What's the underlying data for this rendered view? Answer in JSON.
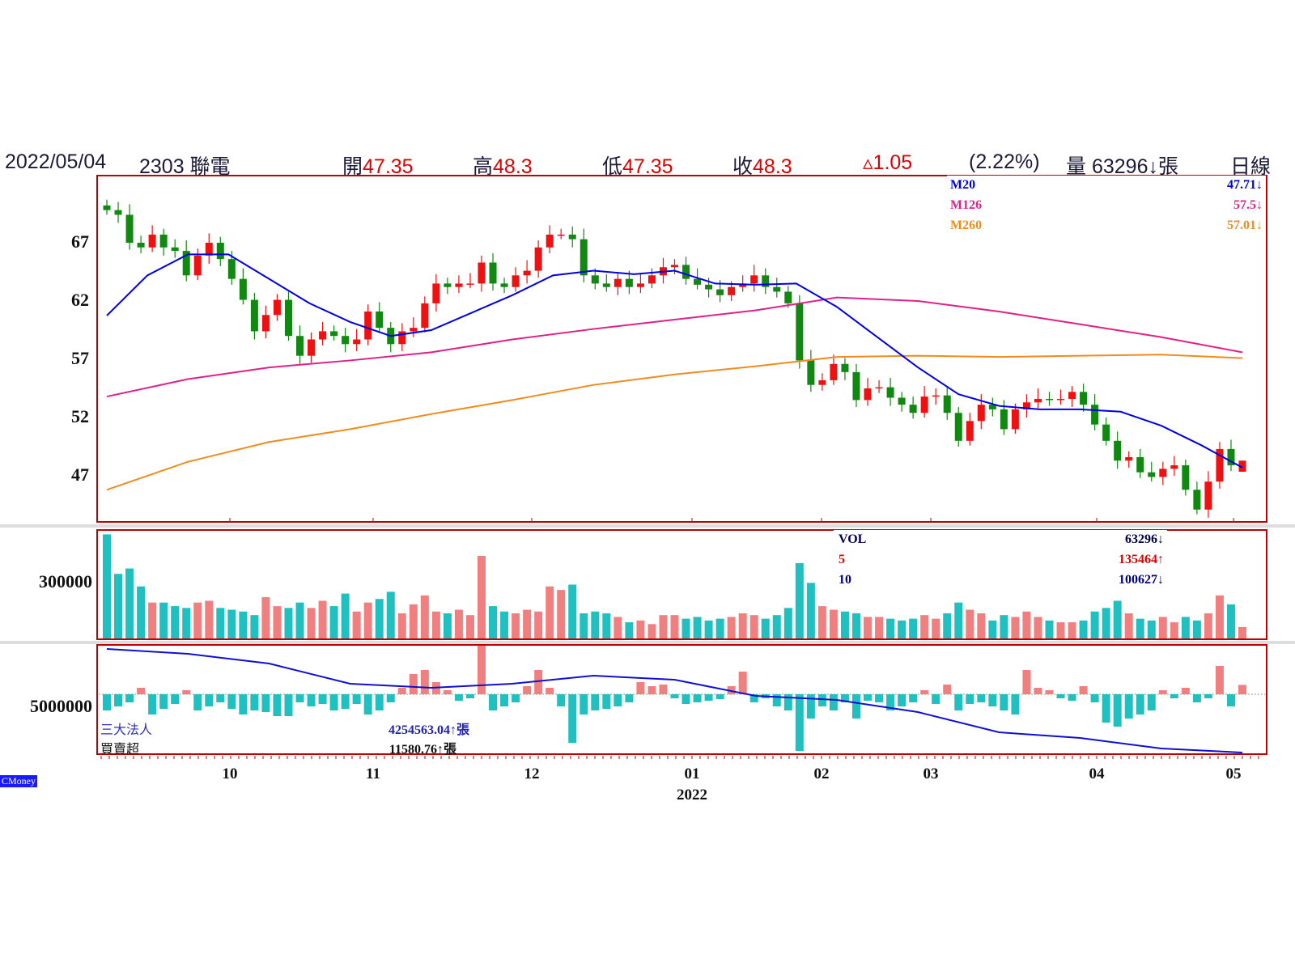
{
  "header": {
    "date": "2022/05/04",
    "stock": "2303 聯電",
    "open_label": "開",
    "open": "47.35",
    "high_label": "高",
    "high": "48.3",
    "low_label": "低",
    "low": "47.35",
    "close_label": "收",
    "close": "48.3",
    "change": "▵1.05",
    "change_pct": "(2.22%)",
    "volume_label": "量",
    "volume": "63296↓張",
    "period": "日線"
  },
  "ma_legend": [
    {
      "name": "M20",
      "value": "47.71↓",
      "color": "#0000e0"
    },
    {
      "name": "M126",
      "value": "57.5↓",
      "color": "#e0208a"
    },
    {
      "name": "M260",
      "value": "57.01↓",
      "color": "#f08c1e"
    }
  ],
  "vol_legend": [
    {
      "name": "VOL",
      "value": "63296↓",
      "color": "#000050"
    },
    {
      "name": "5",
      "value": "135464↑",
      "color": "#e00000"
    },
    {
      "name": "10",
      "value": "100627↓",
      "color": "#000080"
    }
  ],
  "inst_legend": {
    "name": "三大法人",
    "value": "4254563.04↑張",
    "name2": "買賣超",
    "value2": "11580.76↑張"
  },
  "brand": "CMoney",
  "colors": {
    "up": "#ee1111",
    "down": "#118811",
    "vol_up": "#f08080",
    "vol_down": "#20c0c0",
    "frame": "#c00000"
  },
  "chart_data": {
    "type": "candlestick",
    "price_ticks": [
      "67",
      "62",
      "57",
      "52",
      "47"
    ],
    "price_tick_values": [
      67,
      62,
      57,
      52,
      47
    ],
    "volume_tick": "300000",
    "volume_tick_value": 300000,
    "inst_tick": "5000000",
    "inst_tick_value": 5000000,
    "x_ticks": [
      "10",
      "11",
      "12",
      "01",
      "02",
      "03",
      "04",
      "05"
    ],
    "year_label": "2022",
    "close": [
      69.8,
      69.4,
      67,
      66.6,
      67.7,
      66.6,
      66.3,
      64.2,
      65.9,
      67,
      65.6,
      63.9,
      62.1,
      59.4,
      60.8,
      62.1,
      59,
      57.3,
      58.7,
      59.4,
      59,
      58.3,
      58.7,
      61.1,
      59.7,
      58.3,
      59.4,
      59.7,
      61.8,
      63.5,
      63.2,
      63.5,
      63.5,
      65.3,
      63.5,
      63.2,
      64.2,
      64.6,
      66.6,
      67.7,
      67.7,
      67.3,
      64.2,
      63.5,
      63.2,
      63.9,
      63.2,
      63.5,
      64.2,
      64.9,
      65.1,
      63.9,
      63.4,
      63.0,
      62.5,
      63.2,
      63.5,
      64.2,
      63.2,
      62.8,
      61.8,
      56.9,
      54.8,
      55.2,
      56.6,
      55.9,
      53.5,
      54.5,
      54.6,
      53.7,
      53.1,
      52.4,
      53.8,
      53.9,
      52.4,
      50,
      51.7,
      53.1,
      52.7,
      51,
      52.7,
      53.3,
      53.6,
      53.5,
      53.6,
      54.2,
      53.1,
      51.4,
      50,
      48.3,
      48.6,
      47.3,
      46.9,
      47.6,
      47.9,
      45.8,
      44.1,
      46.5,
      49.3,
      47.9,
      48.3
    ],
    "last_ohlc": {
      "open": 47.35,
      "high": 48.3,
      "low": 47.35,
      "close": 48.3
    },
    "m20": [
      60.75,
      64.2,
      66.0,
      66.0,
      63.9,
      61.8,
      60.2,
      59.0,
      59.5,
      61.0,
      62.5,
      64.2,
      64.6,
      64.3,
      64.6,
      63.5,
      63.4,
      63.5,
      61.5,
      58.9,
      56.3,
      54.0,
      53.0,
      52.7,
      52.7,
      52.5,
      51.3,
      49.6,
      47.7
    ],
    "m126": [
      53.8,
      55.3,
      56.3,
      56.9,
      57.6,
      58.7,
      59.6,
      60.4,
      61.2,
      62.3,
      62.0,
      61.1,
      60.0,
      58.9,
      57.6
    ],
    "m260": [
      45.8,
      48.2,
      49.9,
      51.0,
      52.3,
      53.5,
      54.8,
      55.7,
      56.4,
      57.2,
      57.3,
      57.2,
      57.3,
      57.4,
      57.1
    ],
    "volume": [
      580000,
      360000,
      390000,
      290000,
      200000,
      200000,
      180000,
      170000,
      200000,
      210000,
      170000,
      160000,
      150000,
      130000,
      230000,
      180000,
      170000,
      200000,
      170000,
      210000,
      180000,
      250000,
      150000,
      200000,
      220000,
      260000,
      140000,
      190000,
      240000,
      150000,
      140000,
      160000,
      130000,
      460000,
      180000,
      150000,
      140000,
      160000,
      150000,
      290000,
      270000,
      300000,
      140000,
      150000,
      140000,
      120000,
      90000,
      100000,
      80000,
      130000,
      130000,
      110000,
      120000,
      100000,
      110000,
      120000,
      140000,
      130000,
      110000,
      130000,
      170000,
      420000,
      310000,
      180000,
      160000,
      150000,
      140000,
      120000,
      120000,
      110000,
      100000,
      110000,
      130000,
      110000,
      140000,
      200000,
      160000,
      140000,
      100000,
      130000,
      120000,
      150000,
      120000,
      100000,
      90000,
      90000,
      100000,
      150000,
      170000,
      210000,
      140000,
      110000,
      100000,
      120000,
      90000,
      120000,
      100000,
      140000,
      240000,
      190000,
      63296
    ],
    "net_buy": [
      -20000,
      -15000,
      -10000,
      8000,
      -25000,
      -18000,
      -12000,
      5000,
      -20000,
      -15000,
      -10000,
      -18000,
      -25000,
      -20000,
      -22000,
      -30000,
      -30000,
      -10000,
      -15000,
      -12000,
      -20000,
      -18000,
      -12000,
      -25000,
      -20000,
      -10000,
      8000,
      25000,
      30000,
      15000,
      5000,
      -8000,
      -5000,
      60000,
      -20000,
      -15000,
      -10000,
      10000,
      30000,
      8000,
      -15000,
      -60000,
      -25000,
      -20000,
      -18000,
      -15000,
      -10000,
      15000,
      10000,
      12000,
      -5000,
      -12000,
      -10000,
      -8000,
      -6000,
      10000,
      28000,
      -10000,
      -5000,
      -15000,
      -20000,
      -70000,
      -30000,
      -15000,
      -20000,
      -10000,
      -30000,
      -8000,
      -10000,
      -20000,
      -15000,
      -10000,
      5000,
      -12000,
      12000,
      -20000,
      -12000,
      -10000,
      -15000,
      -20000,
      -25000,
      30000,
      8000,
      5000,
      -5000,
      -8000,
      10000,
      -10000,
      -35000,
      -40000,
      -30000,
      -25000,
      -20000,
      5000,
      -5000,
      8000,
      -10000,
      -5000,
      35000,
      -15000,
      11580.76
    ],
    "inst_cumulative": [
      5989000,
      5908000,
      5745000,
      5407000,
      5339000,
      5407000,
      5542000,
      5474000,
      5203000,
      5136000,
      4932000,
      4593000,
      4499000,
      4322000,
      4254563.04
    ]
  }
}
